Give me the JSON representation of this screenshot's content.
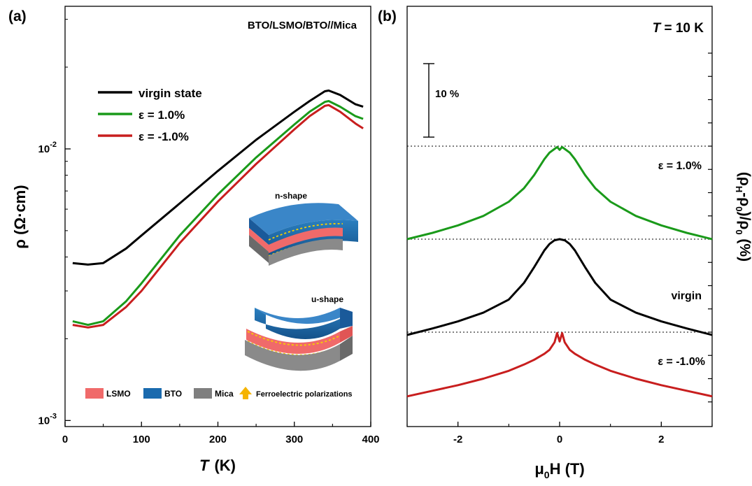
{
  "chart_data": [
    {
      "panel_label": "(a)",
      "type": "line",
      "title": "BTO/LSMO/BTO//Mica",
      "xlabel": "T",
      "xlabel_unit": "(K)",
      "ylabel": "ρ (Ω·cm)",
      "xlim": [
        0,
        400
      ],
      "ylim": [
        0.00095,
        0.0335
      ],
      "yscale": "log",
      "x_ticks": [
        0,
        100,
        200,
        300,
        400
      ],
      "y_tick_labels": [
        {
          "base": "10",
          "exp": "-2",
          "value": 0.01
        },
        {
          "base": "10",
          "exp": "-3",
          "value": 0.001
        }
      ],
      "legend_position": "upper-left",
      "series": [
        {
          "name": "virgin state",
          "color": "#000000",
          "x": [
            10,
            30,
            50,
            80,
            100,
            150,
            200,
            250,
            300,
            320,
            340,
            345,
            360,
            380,
            390
          ],
          "y": [
            0.0038,
            0.00375,
            0.0038,
            0.0043,
            0.0048,
            0.0063,
            0.0083,
            0.0108,
            0.0137,
            0.015,
            0.0163,
            0.0164,
            0.0158,
            0.0146,
            0.0143
          ]
        },
        {
          "name": "ε = 1.0%",
          "color": "#1a9a1a",
          "x": [
            10,
            30,
            50,
            80,
            100,
            150,
            200,
            250,
            300,
            320,
            340,
            345,
            360,
            380,
            390
          ],
          "y": [
            0.00232,
            0.00225,
            0.00232,
            0.00275,
            0.0032,
            0.0048,
            0.0068,
            0.0093,
            0.0123,
            0.0137,
            0.0149,
            0.015,
            0.0143,
            0.0132,
            0.0129
          ]
        },
        {
          "name": "ε = -1.0%",
          "color": "#c81e1e",
          "x": [
            10,
            30,
            50,
            80,
            100,
            150,
            200,
            250,
            300,
            320,
            340,
            345,
            360,
            380,
            390
          ],
          "y": [
            0.00225,
            0.0022,
            0.00225,
            0.00262,
            0.003,
            0.0045,
            0.0064,
            0.0088,
            0.0118,
            0.0132,
            0.0144,
            0.0145,
            0.0137,
            0.0124,
            0.0119
          ]
        }
      ],
      "inset": {
        "label_top": "n-shape",
        "label_bottom": "u-shape",
        "legend": [
          {
            "label": "LSMO",
            "color": "#f06a6a"
          },
          {
            "label": "BTO",
            "color": "#1a6aae"
          },
          {
            "label": "Mica",
            "color": "#7f7f7f"
          },
          {
            "label": "Ferroelectric polarizations",
            "color": "#f5b400"
          }
        ]
      }
    },
    {
      "panel_label": "(b)",
      "type": "line",
      "annotation": "T = 10 K",
      "annotation_var": "T",
      "annotation_rest": " = 10 K",
      "xlabel": "μ0H (T)",
      "ylabel": "(ρH-ρ0)/ρ0 (%)",
      "xlim": [
        -3,
        3
      ],
      "x_ticks": [
        -2,
        0,
        2
      ],
      "scale_bar_label": "10 %",
      "scale_bar_size": 10,
      "series": [
        {
          "name": "ε = 1.0%",
          "color": "#1a9a1a",
          "offset": 50,
          "x": [
            -3,
            -2.5,
            -2,
            -1.5,
            -1,
            -0.7,
            -0.5,
            -0.3,
            -0.2,
            -0.1,
            -0.05,
            0,
            0.05,
            0.1,
            0.2,
            0.3,
            0.5,
            0.7,
            1,
            1.5,
            2,
            2.5,
            3
          ],
          "y": [
            -50,
            -46.6,
            -42.6,
            -37.5,
            -29.9,
            -22.6,
            -15.5,
            -7,
            -3.5,
            -1.5,
            -0.5,
            -2,
            -0.5,
            -1.5,
            -3.5,
            -7,
            -15.5,
            -22.6,
            -29.9,
            -37.5,
            -42.6,
            -46.6,
            -50
          ]
        },
        {
          "name": "virgin",
          "color": "#000000",
          "offset": 0,
          "x": [
            -3,
            -2.5,
            -2,
            -1.5,
            -1,
            -0.7,
            -0.5,
            -0.3,
            -0.2,
            -0.1,
            0,
            0.1,
            0.2,
            0.3,
            0.5,
            0.7,
            1,
            1.5,
            2,
            2.5,
            3
          ],
          "y": [
            -51.5,
            -48,
            -44.2,
            -39.5,
            -32.5,
            -23.5,
            -15,
            -6,
            -2.6,
            -0.6,
            0,
            -0.6,
            -2.6,
            -6,
            -15,
            -23.5,
            -32.5,
            -39.5,
            -44.2,
            -48,
            -51.5
          ]
        },
        {
          "name": "ε = -1.0%",
          "color": "#c81e1e",
          "offset": -50,
          "x": [
            -3,
            -2.5,
            -2,
            -1.5,
            -1,
            -0.7,
            -0.5,
            -0.3,
            -0.2,
            -0.1,
            -0.05,
            0,
            0.05,
            0.1,
            0.2,
            0.3,
            0.5,
            0.7,
            1,
            1.5,
            2,
            2.5,
            3
          ],
          "y": [
            -34.5,
            -31.5,
            -28.5,
            -25,
            -20.8,
            -17.4,
            -14.8,
            -11.6,
            -9.5,
            -5.5,
            -0.5,
            -5,
            -0.5,
            -5.5,
            -9.5,
            -11.6,
            -14.8,
            -17.4,
            -20.8,
            -25,
            -28.5,
            -31.5,
            -34.5
          ]
        }
      ]
    }
  ]
}
